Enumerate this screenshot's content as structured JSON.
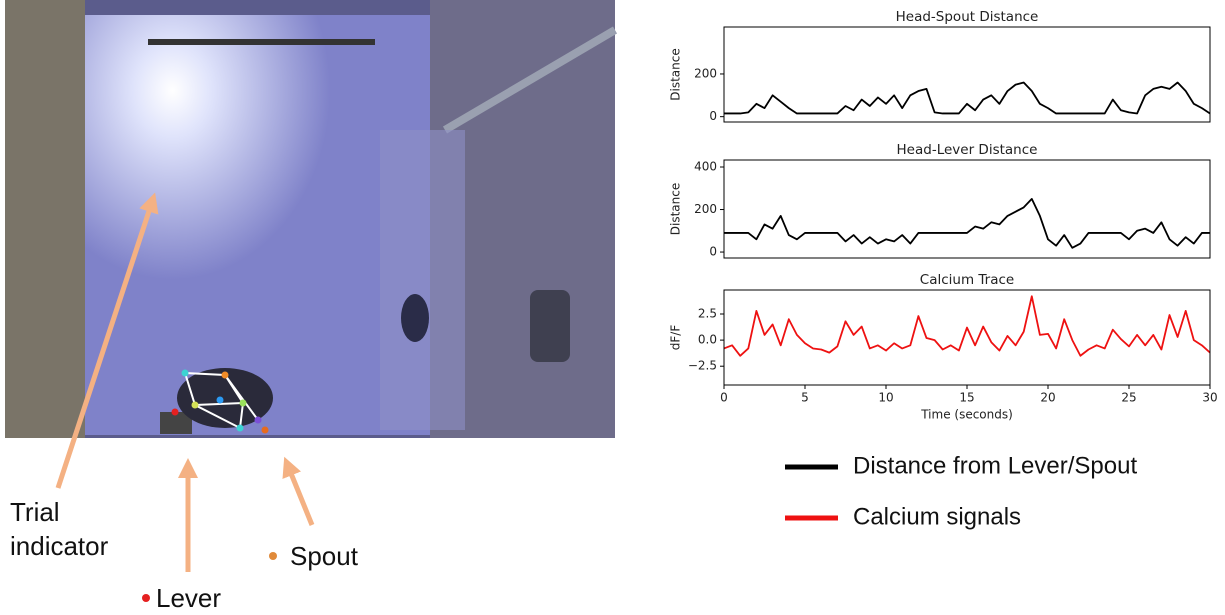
{
  "chart_data": [
    {
      "type": "line",
      "title": "Head-Spout Distance",
      "ylabel": "Distance",
      "x": [
        0,
        0.5,
        1,
        1.5,
        2,
        2.5,
        3,
        3.5,
        4,
        4.5,
        5,
        5.5,
        6,
        6.5,
        7,
        7.5,
        8,
        8.5,
        9,
        9.5,
        10,
        10.5,
        11,
        11.5,
        12,
        12.5,
        13,
        13.5,
        14,
        14.5,
        15,
        15.5,
        16,
        16.5,
        17,
        17.5,
        18,
        18.5,
        19,
        19.5,
        20,
        20.5,
        21,
        21.5,
        22,
        22.5,
        23,
        23.5,
        24,
        24.5,
        25,
        25.5,
        26,
        26.5,
        27,
        27.5,
        28,
        28.5,
        29,
        29.5,
        30
      ],
      "series": [
        {
          "color": "#000000",
          "values": [
            15,
            15,
            15,
            20,
            60,
            40,
            100,
            70,
            40,
            15,
            15,
            15,
            15,
            15,
            15,
            50,
            30,
            80,
            50,
            90,
            60,
            100,
            40,
            100,
            120,
            130,
            20,
            15,
            15,
            15,
            60,
            30,
            80,
            100,
            60,
            120,
            150,
            160,
            120,
            60,
            40,
            15,
            15,
            15,
            15,
            15,
            15,
            15,
            80,
            30,
            20,
            15,
            100,
            130,
            140,
            130,
            160,
            120,
            60,
            40,
            15
          ]
        }
      ],
      "xlim": [
        0,
        30
      ],
      "ylim": [
        -25,
        420
      ],
      "yticks": [
        0,
        200
      ]
    },
    {
      "type": "line",
      "title": "Head-Lever Distance",
      "ylabel": "Distance",
      "x": [
        0,
        0.5,
        1,
        1.5,
        2,
        2.5,
        3,
        3.5,
        4,
        4.5,
        5,
        5.5,
        6,
        6.5,
        7,
        7.5,
        8,
        8.5,
        9,
        9.5,
        10,
        10.5,
        11,
        11.5,
        12,
        12.5,
        13,
        13.5,
        14,
        14.5,
        15,
        15.5,
        16,
        16.5,
        17,
        17.5,
        18,
        18.5,
        19,
        19.5,
        20,
        20.5,
        21,
        21.5,
        22,
        22.5,
        23,
        23.5,
        24,
        24.5,
        25,
        25.5,
        26,
        26.5,
        27,
        27.5,
        28,
        28.5,
        29,
        29.5,
        30
      ],
      "series": [
        {
          "color": "#000000",
          "values": [
            90,
            90,
            90,
            90,
            60,
            130,
            110,
            170,
            80,
            60,
            90,
            90,
            90,
            90,
            90,
            50,
            80,
            40,
            70,
            40,
            60,
            50,
            80,
            40,
            90,
            90,
            90,
            90,
            90,
            90,
            90,
            120,
            110,
            140,
            130,
            170,
            190,
            210,
            250,
            170,
            60,
            30,
            80,
            20,
            40,
            90,
            90,
            90,
            90,
            90,
            60,
            100,
            110,
            90,
            140,
            60,
            30,
            70,
            40,
            90,
            90
          ]
        }
      ],
      "xlim": [
        0,
        30
      ],
      "ylim": [
        -28,
        433
      ],
      "yticks": [
        0,
        200,
        400
      ]
    },
    {
      "type": "line",
      "title": "Calcium Trace",
      "ylabel": "dF/F",
      "xlabel": "Time (seconds)",
      "x": [
        0,
        0.5,
        1,
        1.5,
        2,
        2.5,
        3,
        3.5,
        4,
        4.5,
        5,
        5.5,
        6,
        6.5,
        7,
        7.5,
        8,
        8.5,
        9,
        9.5,
        10,
        10.5,
        11,
        11.5,
        12,
        12.5,
        13,
        13.5,
        14,
        14.5,
        15,
        15.5,
        16,
        16.5,
        17,
        17.5,
        18,
        18.5,
        19,
        19.5,
        20,
        20.5,
        21,
        21.5,
        22,
        22.5,
        23,
        23.5,
        24,
        24.5,
        25,
        25.5,
        26,
        26.5,
        27,
        27.5,
        28,
        28.5,
        29,
        29.5,
        30
      ],
      "series": [
        {
          "color": "#ee1111",
          "values": [
            -0.8,
            -0.5,
            -1.5,
            -0.8,
            2.8,
            0.5,
            1.5,
            -0.5,
            2.0,
            0.5,
            -0.3,
            -0.8,
            -0.9,
            -1.2,
            -0.6,
            1.8,
            0.5,
            1.3,
            -0.8,
            -0.5,
            -1.0,
            -0.3,
            -0.8,
            -0.5,
            2.3,
            0.2,
            0.0,
            -0.9,
            -0.5,
            -1.0,
            1.2,
            -0.5,
            1.3,
            -0.2,
            -1.0,
            0.4,
            -0.5,
            0.8,
            4.2,
            0.5,
            0.6,
            -0.8,
            2.0,
            0.0,
            -1.5,
            -0.9,
            -0.5,
            -0.8,
            1.0,
            0.1,
            -0.6,
            0.5,
            -0.5,
            0.5,
            -0.9,
            2.4,
            0.3,
            2.8,
            0.0,
            -0.5,
            -1.2
          ]
        }
      ],
      "xlim": [
        0,
        30
      ],
      "ylim": [
        -4.3,
        4.8
      ],
      "yticks": [
        {
          "value": 2.5,
          "label": "2.5"
        },
        {
          "value": 0,
          "label": "0.0"
        },
        {
          "value": -2.5,
          "label": "−2.5"
        }
      ],
      "xticks": [
        0,
        5,
        10,
        15,
        20,
        25,
        30
      ]
    }
  ],
  "legend": [
    {
      "label": "Distance from Lever/Spout",
      "color": "#000000"
    },
    {
      "label": "Calcium signals",
      "color": "#ee1111"
    }
  ],
  "annotations": {
    "trial_indicator": "Trial indicator",
    "lever": "Lever",
    "spout": "Spout"
  }
}
